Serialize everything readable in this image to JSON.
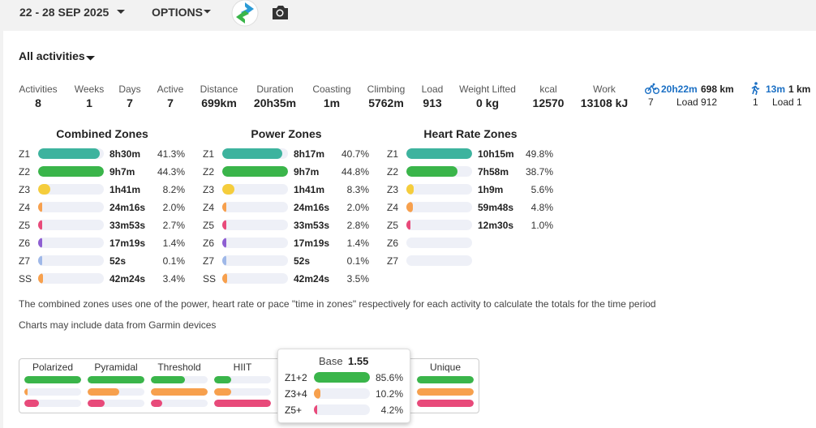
{
  "header": {
    "date_range": "22 - 28 SEP 2025",
    "options": "OPTIONS"
  },
  "filter": "All activities",
  "stats": [
    {
      "label": "Activities",
      "value": "8"
    },
    {
      "label": "Weeks",
      "value": "1"
    },
    {
      "label": "Days",
      "value": "7"
    },
    {
      "label": "Active",
      "value": "7"
    },
    {
      "label": "Distance",
      "value": "699km"
    },
    {
      "label": "Duration",
      "value": "20h35m"
    },
    {
      "label": "Coasting",
      "value": "1m"
    },
    {
      "label": "Climbing",
      "value": "5762m"
    },
    {
      "label": "Load",
      "value": "913"
    },
    {
      "label": "Weight Lifted",
      "value": "0 kg"
    },
    {
      "label": "kcal",
      "value": "12570"
    },
    {
      "label": "Work",
      "value": "13108 kJ"
    }
  ],
  "sports": [
    {
      "duration": "20h22m",
      "distance": "698 km",
      "count": "7",
      "load": "Load 912"
    },
    {
      "duration": "13m",
      "distance": "1 km",
      "count": "1",
      "load": "Load 1"
    }
  ],
  "zone_colors": {
    "Z1": "#3db39e",
    "Z2": "#3ab54a",
    "Z3": "#f5cd3c",
    "Z4": "#f7a04d",
    "Z5": "#e84a7a",
    "Z6": "#8e5fd2",
    "Z7": "#9fb8e8",
    "SS": "#f7a04d"
  },
  "zone_panels": [
    {
      "title": "Combined Zones",
      "rows": [
        {
          "zone": "Z1",
          "time": "8h30m",
          "pct": 41.3,
          "pct_label": "41.3%"
        },
        {
          "zone": "Z2",
          "time": "9h7m",
          "pct": 44.3,
          "pct_label": "44.3%"
        },
        {
          "zone": "Z3",
          "time": "1h41m",
          "pct": 8.2,
          "pct_label": "8.2%"
        },
        {
          "zone": "Z4",
          "time": "24m16s",
          "pct": 2.0,
          "pct_label": "2.0%"
        },
        {
          "zone": "Z5",
          "time": "33m53s",
          "pct": 2.7,
          "pct_label": "2.7%"
        },
        {
          "zone": "Z6",
          "time": "17m19s",
          "pct": 1.4,
          "pct_label": "1.4%"
        },
        {
          "zone": "Z7",
          "time": "52s",
          "pct": 0.1,
          "pct_label": "0.1%"
        },
        {
          "zone": "SS",
          "time": "42m24s",
          "pct": 3.4,
          "pct_label": "3.4%"
        }
      ]
    },
    {
      "title": "Power Zones",
      "rows": [
        {
          "zone": "Z1",
          "time": "8h17m",
          "pct": 40.7,
          "pct_label": "40.7%"
        },
        {
          "zone": "Z2",
          "time": "9h7m",
          "pct": 44.8,
          "pct_label": "44.8%"
        },
        {
          "zone": "Z3",
          "time": "1h41m",
          "pct": 8.3,
          "pct_label": "8.3%"
        },
        {
          "zone": "Z4",
          "time": "24m16s",
          "pct": 2.0,
          "pct_label": "2.0%"
        },
        {
          "zone": "Z5",
          "time": "33m53s",
          "pct": 2.8,
          "pct_label": "2.8%"
        },
        {
          "zone": "Z6",
          "time": "17m19s",
          "pct": 1.4,
          "pct_label": "1.4%"
        },
        {
          "zone": "Z7",
          "time": "52s",
          "pct": 0.1,
          "pct_label": "0.1%"
        },
        {
          "zone": "SS",
          "time": "42m24s",
          "pct": 3.5,
          "pct_label": "3.5%"
        }
      ]
    },
    {
      "title": "Heart Rate Zones",
      "rows": [
        {
          "zone": "Z1",
          "time": "10h15m",
          "pct": 49.8,
          "pct_label": "49.8%"
        },
        {
          "zone": "Z2",
          "time": "7h58m",
          "pct": 38.7,
          "pct_label": "38.7%"
        },
        {
          "zone": "Z3",
          "time": "1h9m",
          "pct": 5.6,
          "pct_label": "5.6%"
        },
        {
          "zone": "Z4",
          "time": "59m48s",
          "pct": 4.8,
          "pct_label": "4.8%"
        },
        {
          "zone": "Z5",
          "time": "12m30s",
          "pct": 1.0,
          "pct_label": "1.0%"
        },
        {
          "zone": "Z6"
        },
        {
          "zone": "Z7"
        }
      ]
    }
  ],
  "notes": [
    "The combined zones uses one of the power, heart rate or pace \"time in zones\" respectively for each activity to calculate the totals for the time period",
    "Charts may include data from Garmin devices"
  ],
  "distribution": {
    "colors": [
      "#3ab54a",
      "#f7a04d",
      "#e84a7a"
    ],
    "models": [
      {
        "name": "Polarized",
        "values": [
          100,
          6,
          25
        ]
      },
      {
        "name": "Pyramidal",
        "values": [
          100,
          55,
          30
        ]
      },
      {
        "name": "Threshold",
        "values": [
          60,
          100,
          20
        ]
      },
      {
        "name": "HIIT",
        "values": [
          30,
          30,
          100
        ]
      },
      {
        "name": "Unique",
        "values": [
          100,
          100,
          100
        ]
      }
    ],
    "tooltip": {
      "name": "Base",
      "score": "1.55",
      "rows": [
        {
          "label": "Z1+2",
          "pct": 85.6,
          "pct_label": "85.6%"
        },
        {
          "label": "Z3+4",
          "pct": 10.2,
          "pct_label": "10.2%"
        },
        {
          "label": "Z5+",
          "pct": 4.2,
          "pct_label": "4.2%"
        }
      ]
    }
  }
}
